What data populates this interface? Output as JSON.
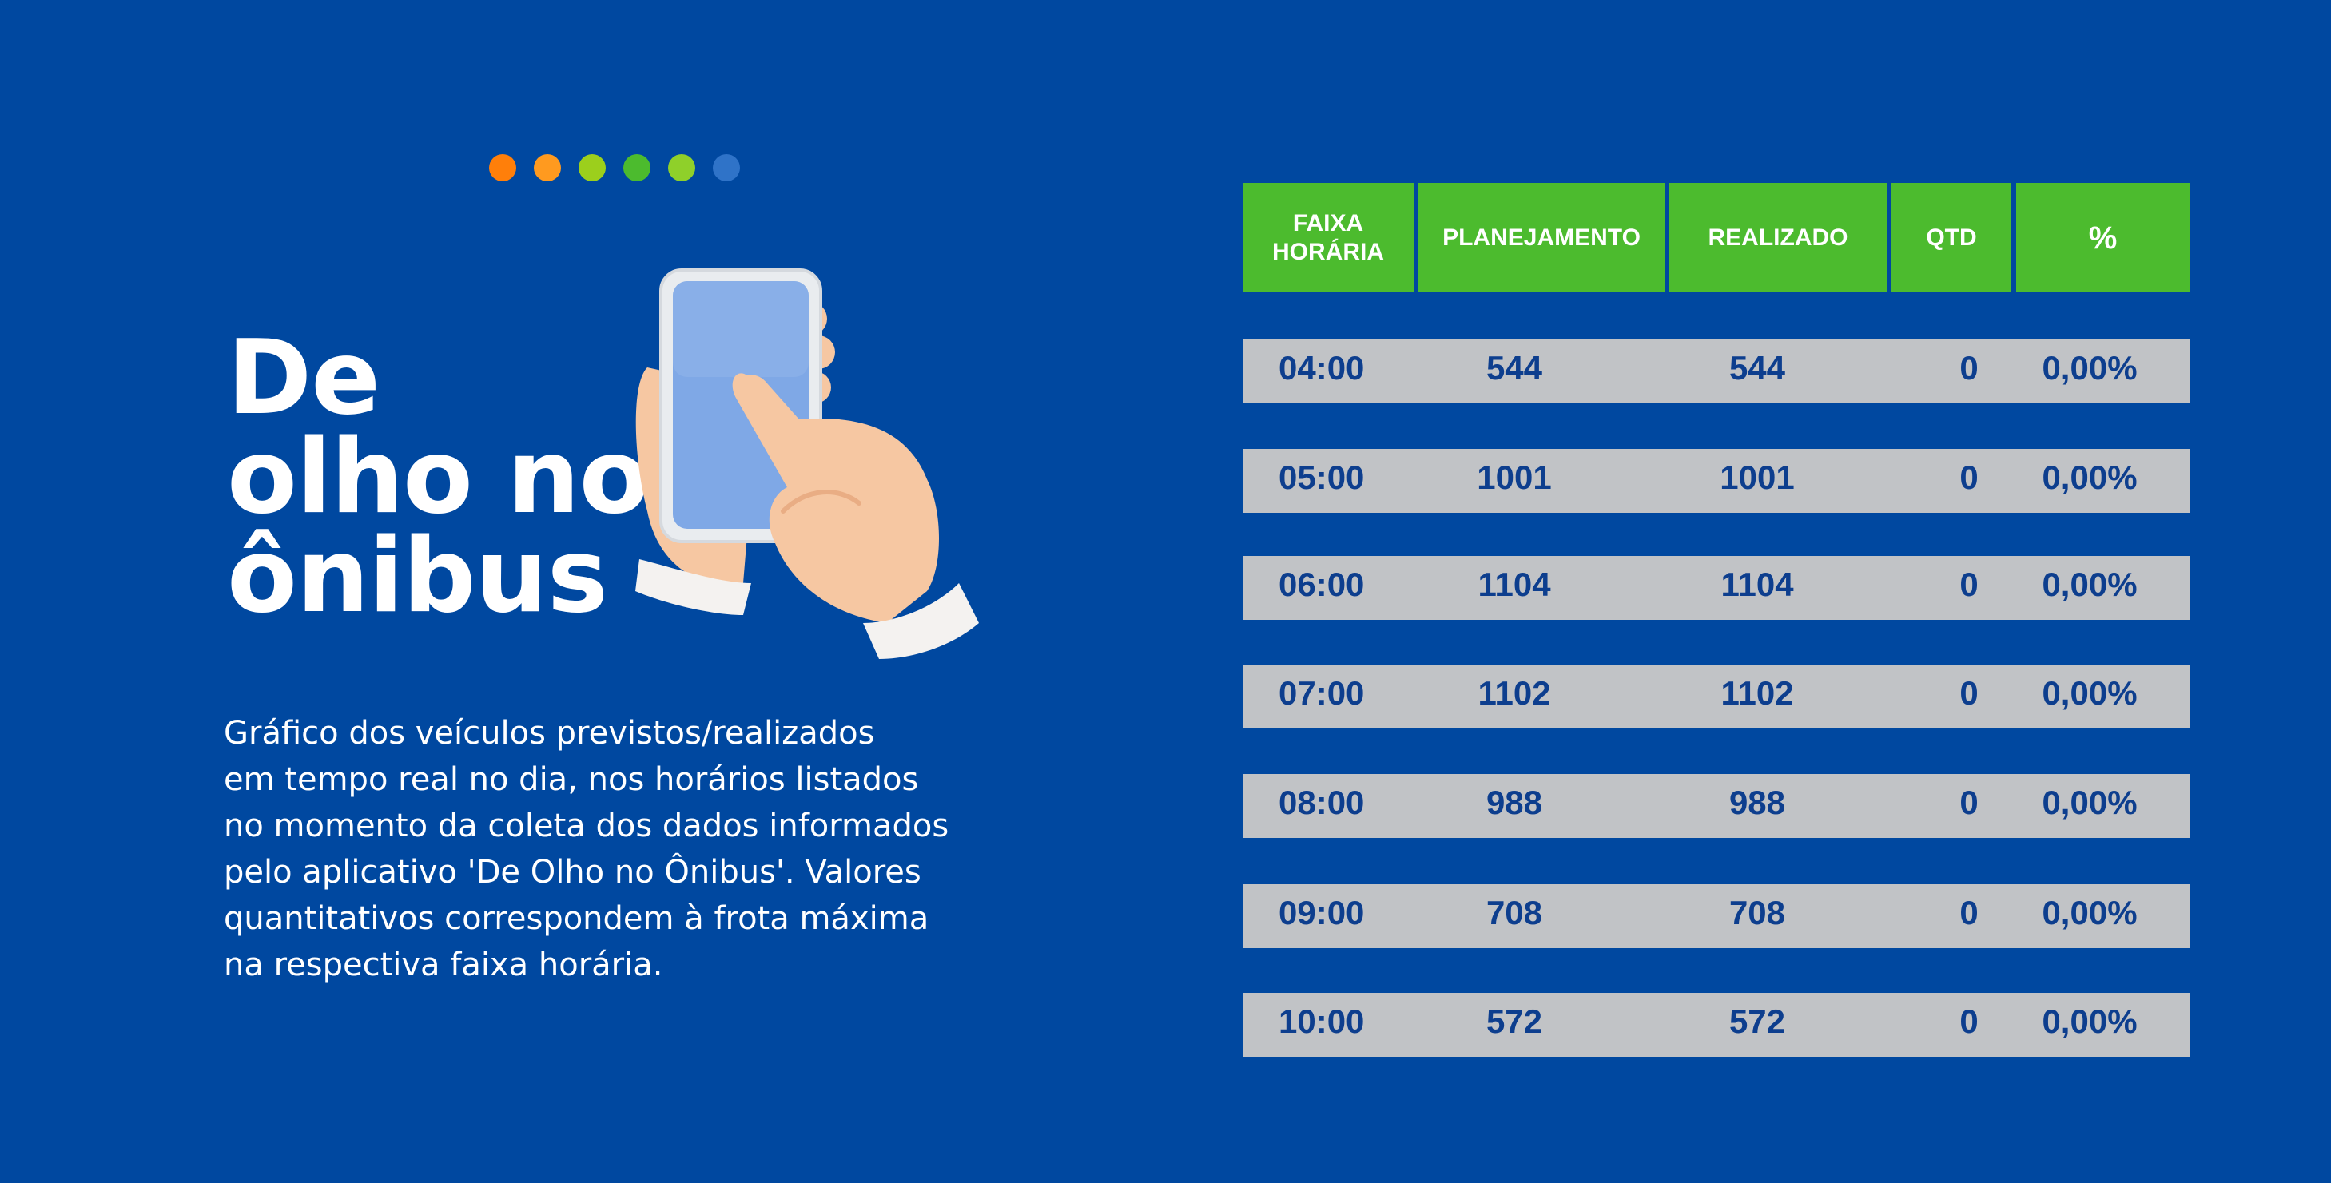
{
  "indicator_dots": [
    "#ff7f0a",
    "#ff9a1f",
    "#9ccf1c",
    "#4cbb2e",
    "#8fd02a",
    "#2f73c8"
  ],
  "title_lines": [
    "De",
    "olho no",
    "ônibus"
  ],
  "description_lines": [
    "Gráfico dos veículos previstos/realizados",
    "em tempo real no dia, nos horários  listados",
    "no momento da coleta dos dados informados",
    "pelo aplicativo  'De Olho no Ônibus'. Valores",
    "quantitativos correspondem à frota máxima",
    "na respectiva faixa horária."
  ],
  "illustration_icon": "hand-holding-smartphone-icon",
  "table": {
    "headers": {
      "faixa_line1": "FAIXA",
      "faixa_line2": "HORÁRIA",
      "planejamento": "PLANEJAMENTO",
      "realizado": "REALIZADO",
      "qtd": "QTD",
      "pct": "%"
    },
    "rows": [
      {
        "faixa": "04:00",
        "planejamento": "544",
        "realizado": "544",
        "qtd": "0",
        "pct": "0,00%"
      },
      {
        "faixa": "05:00",
        "planejamento": "1001",
        "realizado": "1001",
        "qtd": "0",
        "pct": "0,00%"
      },
      {
        "faixa": "06:00",
        "planejamento": "1104",
        "realizado": "1104",
        "qtd": "0",
        "pct": "0,00%"
      },
      {
        "faixa": "07:00",
        "planejamento": "1102",
        "realizado": "1102",
        "qtd": "0",
        "pct": "0,00%"
      },
      {
        "faixa": "08:00",
        "planejamento": "988",
        "realizado": "988",
        "qtd": "0",
        "pct": "0,00%"
      },
      {
        "faixa": "09:00",
        "planejamento": "708",
        "realizado": "708",
        "qtd": "0",
        "pct": "0,00%"
      },
      {
        "faixa": "10:00",
        "planejamento": "572",
        "realizado": "572",
        "qtd": "0",
        "pct": "0,00%"
      }
    ]
  },
  "colors": {
    "background": "#0048a0",
    "header_green": "#4cbb2e",
    "row_gray": "#c1c3c6",
    "row_text": "#0d3e8e"
  }
}
